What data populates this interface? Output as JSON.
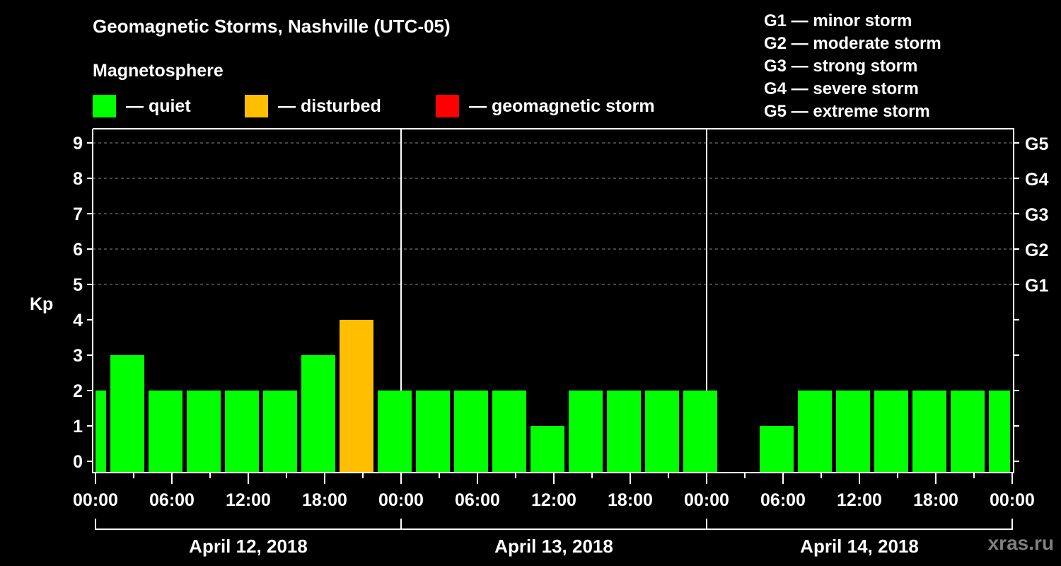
{
  "header": {
    "title": "Geomagnetic Storms, Nashville (UTC-05)",
    "subtitle": "Magnetosphere"
  },
  "legend": [
    {
      "label": "— quiet",
      "color": "#00ff00"
    },
    {
      "label": "— disturbed",
      "color": "#ffbf00"
    },
    {
      "label": "— geomagnetic storm",
      "color": "#ff0000"
    }
  ],
  "g_scale": [
    "G1 — minor storm",
    "G2 — moderate storm",
    "G3 — strong storm",
    "G4 — severe storm",
    "G5 — extreme storm"
  ],
  "watermark": "xras.ru",
  "chart_data": {
    "type": "bar",
    "title": "Geomagnetic Storms, Nashville (UTC-05)",
    "subtitle": "Magnetosphere",
    "ylabel": "Kp",
    "xlabel": "",
    "ylim": [
      0,
      9
    ],
    "yticks": [
      "0",
      "1",
      "2",
      "3",
      "4",
      "5",
      "6",
      "7",
      "8",
      "9"
    ],
    "right_ticks": [
      {
        "kp": 5,
        "label": "G1"
      },
      {
        "kp": 6,
        "label": "G2"
      },
      {
        "kp": 7,
        "label": "G3"
      },
      {
        "kp": 8,
        "label": "G4"
      },
      {
        "kp": 9,
        "label": "G5"
      }
    ],
    "grid": "dashed horizontal lines at Kp 5-9",
    "xticks": [
      "00:00",
      "06:00",
      "12:00",
      "18:00",
      "00:00",
      "06:00",
      "12:00",
      "18:00",
      "00:00",
      "06:00",
      "12:00",
      "18:00",
      "00:00"
    ],
    "days": [
      "April 12, 2018",
      "April 13, 2018",
      "April 14, 2018"
    ],
    "bar_interval_hours": 3,
    "bar_center_hours": [
      -0.5,
      2.5,
      5.5,
      8.5,
      11.5,
      14.5,
      17.5,
      20.5,
      23.5,
      26.5,
      29.5,
      32.5,
      35.5,
      38.5,
      41.5,
      44.5,
      47.5,
      50.5,
      53.5,
      56.5,
      59.5,
      62.5,
      65.5,
      68.5,
      71.5
    ],
    "values": [
      2,
      3,
      2,
      2,
      2,
      2,
      3,
      4,
      2,
      2,
      2,
      2,
      1,
      2,
      2,
      2,
      2,
      0,
      1,
      2,
      2,
      2,
      2,
      2,
      2
    ],
    "colors": {
      "quiet": "#00ff00",
      "disturbed": "#ffbf00",
      "storm": "#ff0000"
    },
    "legend_position": "top"
  }
}
